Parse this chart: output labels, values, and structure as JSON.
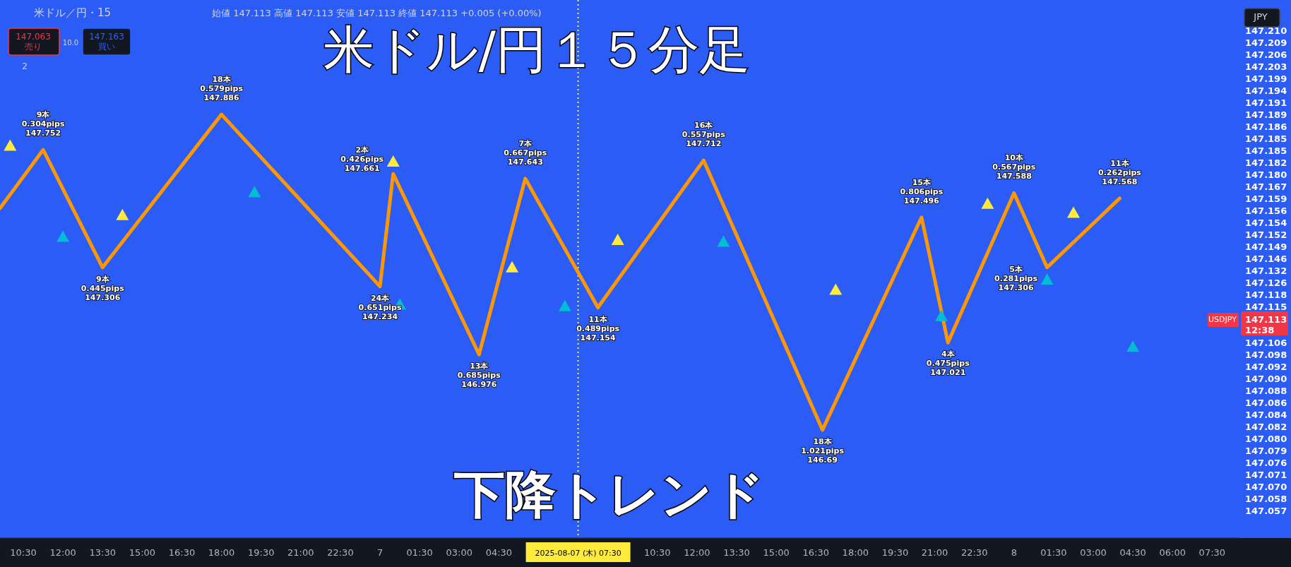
{
  "chart_data": {
    "type": "line",
    "title": "米ドル/円１５分足",
    "xlim": [
      "2025-08-06T09:37",
      "2025-08-08T08:32"
    ],
    "ylim": [
      146.28,
      148.32
    ],
    "xticks": [
      {
        "value": "2025-08-06T10:30",
        "label": "10:30"
      },
      {
        "value": "2025-08-06T12:00",
        "label": "12:00"
      },
      {
        "value": "2025-08-06T13:30",
        "label": "13:30"
      },
      {
        "value": "2025-08-06T15:00",
        "label": "15:00"
      },
      {
        "value": "2025-08-06T16:30",
        "label": "16:30"
      },
      {
        "value": "2025-08-06T18:00",
        "label": "18:00"
      },
      {
        "value": "2025-08-06T19:30",
        "label": "19:30"
      },
      {
        "value": "2025-08-06T21:00",
        "label": "21:00"
      },
      {
        "value": "2025-08-06T22:30",
        "label": "22:30"
      },
      {
        "value": "2025-08-07T00:00",
        "label": "7"
      },
      {
        "value": "2025-08-07T01:30",
        "label": "01:30"
      },
      {
        "value": "2025-08-07T03:00",
        "label": "03:00"
      },
      {
        "value": "2025-08-07T04:30",
        "label": "04:30"
      },
      {
        "value": "2025-08-07T07:30",
        "label": "2025-08-07 (木)  07:30"
      },
      {
        "value": "2025-08-07T10:30",
        "label": "10:30"
      },
      {
        "value": "2025-08-07T12:00",
        "label": "12:00"
      },
      {
        "value": "2025-08-07T13:30",
        "label": "13:30"
      },
      {
        "value": "2025-08-07T15:00",
        "label": "15:00"
      },
      {
        "value": "2025-08-07T16:30",
        "label": "16:30"
      },
      {
        "value": "2025-08-07T18:00",
        "label": "18:00"
      },
      {
        "value": "2025-08-07T19:30",
        "label": "19:30"
      },
      {
        "value": "2025-08-07T21:00",
        "label": "21:00"
      },
      {
        "value": "2025-08-07T22:30",
        "label": "22:30"
      },
      {
        "value": "2025-08-08T00:00",
        "label": "8"
      },
      {
        "value": "2025-08-08T01:30",
        "label": "01:30"
      },
      {
        "value": "2025-08-08T03:00",
        "label": "03:00"
      },
      {
        "value": "2025-08-08T04:30",
        "label": "04:30"
      },
      {
        "value": "2025-08-08T06:00",
        "label": "06:00"
      },
      {
        "value": "2025-08-08T07:30",
        "label": "07:30"
      }
    ],
    "tick_labels": "x",
    "series": [
      {
        "color": "#ff9800",
        "x": [
          "2025-08-06T09:37",
          "2025-08-06T11:15",
          "2025-08-06T13:30",
          "2025-08-06T18:00",
          "2025-08-07T00:00",
          "2025-08-07T00:30",
          "2025-08-07T03:45",
          "2025-08-07T05:30",
          "2025-08-07T08:15",
          "2025-08-07T12:15",
          "2025-08-07T16:45",
          "2025-08-07T20:30",
          "2025-08-07T21:30",
          "2025-08-08T00:00",
          "2025-08-08T01:15",
          "2025-08-08T04:00"
        ],
        "values": [
          147.53,
          147.752,
          147.306,
          147.886,
          147.234,
          147.661,
          146.976,
          147.643,
          147.154,
          147.712,
          146.69,
          147.496,
          147.021,
          147.588,
          147.306,
          147.568
        ],
        "value_labels": [
          null,
          "9本\n0.304pips\n147.752",
          "9本\n0.445pips\n147.306",
          "18本\n0.579pips\n147.886",
          "24本\n0.651pips\n147.234",
          "2本\n0.426pips\n147.661",
          "13本\n0.685pips\n146.976",
          "7本\n0.667pips\n147.643",
          "11本\n0.489pips\n147.154",
          "16本\n0.557pips\n147.712",
          "18本\n1.021pips\n146.69",
          "15本\n0.806pips\n147.496",
          "4本\n0.475pips\n147.021",
          "10本\n0.567pips\n147.588",
          "5本\n0.281pips\n147.306",
          "11本\n0.262pips\n147.568"
        ]
      },
      {
        "type": "scatter",
        "color": "#ffeb3b",
        "marker": "triangle",
        "x": [
          "2025-08-06T10:00",
          "2025-08-06T14:15",
          "2025-08-07T00:30",
          "2025-08-07T05:00",
          "2025-08-07T09:00",
          "2025-08-07T17:15",
          "2025-08-07T23:00",
          "2025-08-08T02:15"
        ],
        "values": [
          147.767,
          147.504,
          147.707,
          147.306,
          147.41,
          147.221,
          147.547,
          147.513
        ]
      },
      {
        "type": "scatter",
        "color": "#00bcd4",
        "marker": "triangle",
        "x": [
          "2025-08-06T12:00",
          "2025-08-06T19:15",
          "2025-08-07T00:45",
          "2025-08-07T07:00",
          "2025-08-07T13:00",
          "2025-08-07T21:15",
          "2025-08-08T01:15",
          "2025-08-08T04:30"
        ],
        "values": [
          147.422,
          147.591,
          147.165,
          147.159,
          147.403,
          147.121,
          147.259,
          147.005
        ]
      }
    ],
    "ref_lines": [
      {
        "axis": "x",
        "value": "2025-08-07T07:30",
        "color": "#ffeb3b",
        "line_style": "dotted"
      }
    ],
    "annotations": [
      "米ドル／円・15",
      "始値 147.113 高値 147.113 安値 147.113 終値 147.113 +0.005 (+0.00%)",
      "147.063\n売り",
      "10.0",
      "147.163\n買い",
      "2",
      "下降トレンド",
      "JPY",
      "USDJPY",
      "147.210\n147.209\n147.206\n147.203\n147.199\n147.194\n147.191\n147.189\n147.186\n147.185\n147.185\n147.182\n147.180\n147.167\n147.159\n147.156\n147.154\n147.152\n147.149\n147.146\n147.132\n147.126\n147.118\n147.115",
      "147.113\n12:38",
      "147.106\n147.098\n147.092\n147.090\n147.088\n147.086\n147.084\n147.082\n147.080\n147.079\n147.076\n147.071\n147.070\n147.058\n147.057"
    ]
  }
}
